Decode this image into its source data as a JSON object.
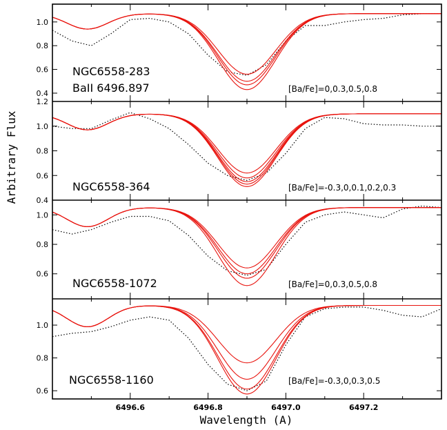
{
  "figure": {
    "ylabel": "Arbitrary Flux",
    "xlabel": "Wavelength (A)"
  },
  "colors": {
    "model": "#e8120c",
    "observed": "#000000",
    "frame": "#000000"
  },
  "chart_data": [
    {
      "type": "line",
      "panel": 1,
      "star": "NGC6558-283",
      "line_id": "BaII 6496.897",
      "abundance_label": "[Ba/Fe]=0,0.3,0.5,0.8",
      "x_ticks": [
        "6496.6",
        "6496.8",
        "6497.0",
        "6497.2"
      ],
      "xlim": [
        6496.4,
        6497.4
      ],
      "ylim": [
        0.33,
        1.15
      ],
      "y_ticks": [
        "0.4",
        "0.6",
        "0.8",
        "1.0"
      ],
      "y_tick_values": [
        0.4,
        0.6,
        0.8,
        1.0
      ],
      "continuum": 1.07,
      "line_center": 6496.9,
      "model_minima": [
        0.56,
        0.5,
        0.47,
        0.43
      ],
      "observed": {
        "x": [
          6496.4,
          6496.45,
          6496.5,
          6496.55,
          6496.6,
          6496.65,
          6496.7,
          6496.75,
          6496.8,
          6496.85,
          6496.9,
          6496.95,
          6497.0,
          6497.05,
          6497.1,
          6497.15,
          6497.2,
          6497.25,
          6497.3,
          6497.35,
          6497.4
        ],
        "y": [
          0.93,
          0.84,
          0.8,
          0.9,
          1.02,
          1.03,
          1.0,
          0.9,
          0.72,
          0.58,
          0.55,
          0.64,
          0.84,
          0.97,
          0.97,
          1.0,
          1.02,
          1.03,
          1.06,
          1.07,
          1.07
        ]
      }
    },
    {
      "type": "line",
      "panel": 2,
      "star": "NGC6558-364",
      "abundance_label": "[Ba/Fe]=-0.3,0,0.1,0.2,0.3",
      "xlim": [
        6496.4,
        6497.4
      ],
      "ylim": [
        0.4,
        1.2
      ],
      "y_ticks": [
        "0.4",
        "0.6",
        "0.8",
        "1.0",
        "1.2"
      ],
      "y_tick_values": [
        0.4,
        0.6,
        0.8,
        1.0,
        1.2
      ],
      "continuum": 1.1,
      "line_center": 6496.9,
      "model_minima": [
        0.62,
        0.58,
        0.55,
        0.53,
        0.51
      ],
      "observed": {
        "x": [
          6496.4,
          6496.45,
          6496.5,
          6496.55,
          6496.6,
          6496.65,
          6496.7,
          6496.75,
          6496.8,
          6496.85,
          6496.9,
          6496.95,
          6497.0,
          6497.05,
          6497.1,
          6497.15,
          6497.2,
          6497.25,
          6497.3,
          6497.35,
          6497.4
        ],
        "y": [
          1.0,
          0.98,
          0.98,
          1.05,
          1.11,
          1.06,
          0.98,
          0.85,
          0.7,
          0.6,
          0.56,
          0.62,
          0.78,
          0.98,
          1.07,
          1.06,
          1.02,
          1.01,
          1.01,
          1.0,
          1.0
        ]
      }
    },
    {
      "type": "line",
      "panel": 3,
      "star": "NGC6558-1072",
      "abundance_label": "[Ba/Fe]=0,0.3,0.5,0.8",
      "xlim": [
        6496.4,
        6497.4
      ],
      "ylim": [
        0.43,
        1.1
      ],
      "y_ticks": [
        "0.6",
        "0.8",
        "1.0"
      ],
      "y_tick_values": [
        0.6,
        0.8,
        1.0
      ],
      "continuum": 1.05,
      "line_center": 6496.9,
      "model_minima": [
        0.64,
        0.6,
        0.57,
        0.52
      ],
      "observed": {
        "x": [
          6496.4,
          6496.45,
          6496.5,
          6496.55,
          6496.6,
          6496.65,
          6496.7,
          6496.75,
          6496.8,
          6496.85,
          6496.9,
          6496.95,
          6497.0,
          6497.05,
          6497.1,
          6497.15,
          6497.2,
          6497.25,
          6497.3,
          6497.35,
          6497.4
        ],
        "y": [
          0.9,
          0.87,
          0.9,
          0.95,
          0.99,
          0.99,
          0.96,
          0.86,
          0.72,
          0.62,
          0.59,
          0.63,
          0.8,
          0.95,
          1.0,
          1.02,
          1.0,
          0.98,
          1.04,
          1.06,
          1.05
        ]
      }
    },
    {
      "type": "line",
      "panel": 4,
      "star": "NGC6558-1160",
      "abundance_label": "[Ba/Fe]=-0.3,0,0.3,0.5",
      "x_ticks": [
        "6496.6",
        "6496.8",
        "6497.0",
        "6497.2"
      ],
      "x_tick_values": [
        6496.6,
        6496.8,
        6497.0,
        6497.2
      ],
      "xlim": [
        6496.4,
        6497.4
      ],
      "ylim": [
        0.55,
        1.16
      ],
      "y_ticks": [
        "0.6",
        "0.8",
        "1.0"
      ],
      "y_tick_values": [
        0.6,
        0.8,
        1.0
      ],
      "continuum": 1.12,
      "line_center": 6496.9,
      "model_minima": [
        0.77,
        0.67,
        0.61,
        0.58
      ],
      "observed": {
        "x": [
          6496.4,
          6496.45,
          6496.5,
          6496.55,
          6496.6,
          6496.65,
          6496.7,
          6496.75,
          6496.8,
          6496.85,
          6496.9,
          6496.95,
          6497.0,
          6497.05,
          6497.1,
          6497.15,
          6497.2,
          6497.25,
          6497.3,
          6497.35,
          6497.4
        ],
        "y": [
          0.93,
          0.95,
          0.96,
          0.99,
          1.03,
          1.05,
          1.03,
          0.92,
          0.76,
          0.64,
          0.6,
          0.66,
          0.88,
          1.05,
          1.1,
          1.11,
          1.11,
          1.09,
          1.06,
          1.05,
          1.1
        ]
      }
    }
  ]
}
